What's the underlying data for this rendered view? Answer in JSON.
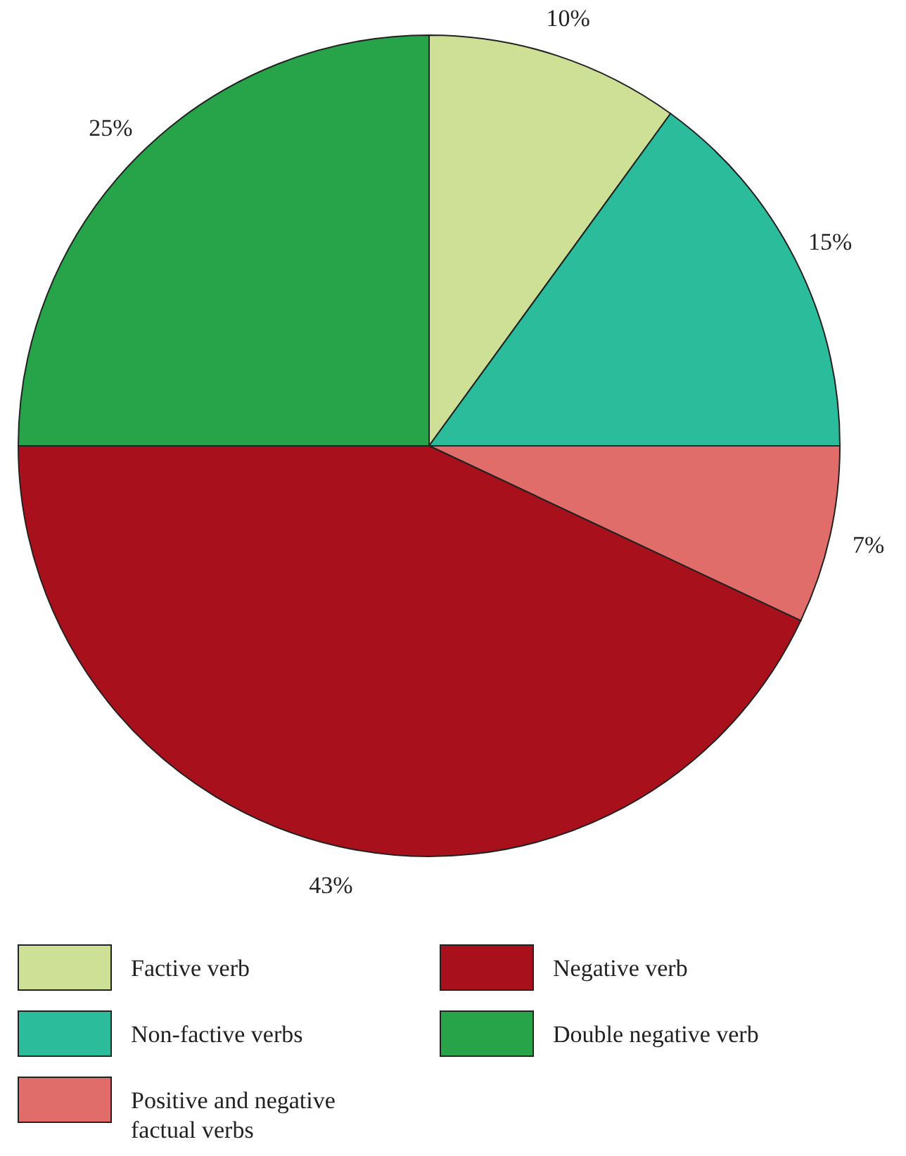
{
  "chart_data": {
    "type": "pie",
    "categories": [
      "Factive verb",
      "Non-factive verbs",
      "Positive and negative factual verbs",
      "Negative verb",
      "Double negative verb"
    ],
    "values": [
      10,
      15,
      7,
      43,
      25
    ],
    "colors": [
      "#cde096",
      "#2bbd9b",
      "#e06d69",
      "#a8111c",
      "#27a449"
    ],
    "value_labels": [
      "10%",
      "15%",
      "7%",
      "43%",
      "25%"
    ],
    "legend": "bottom"
  }
}
